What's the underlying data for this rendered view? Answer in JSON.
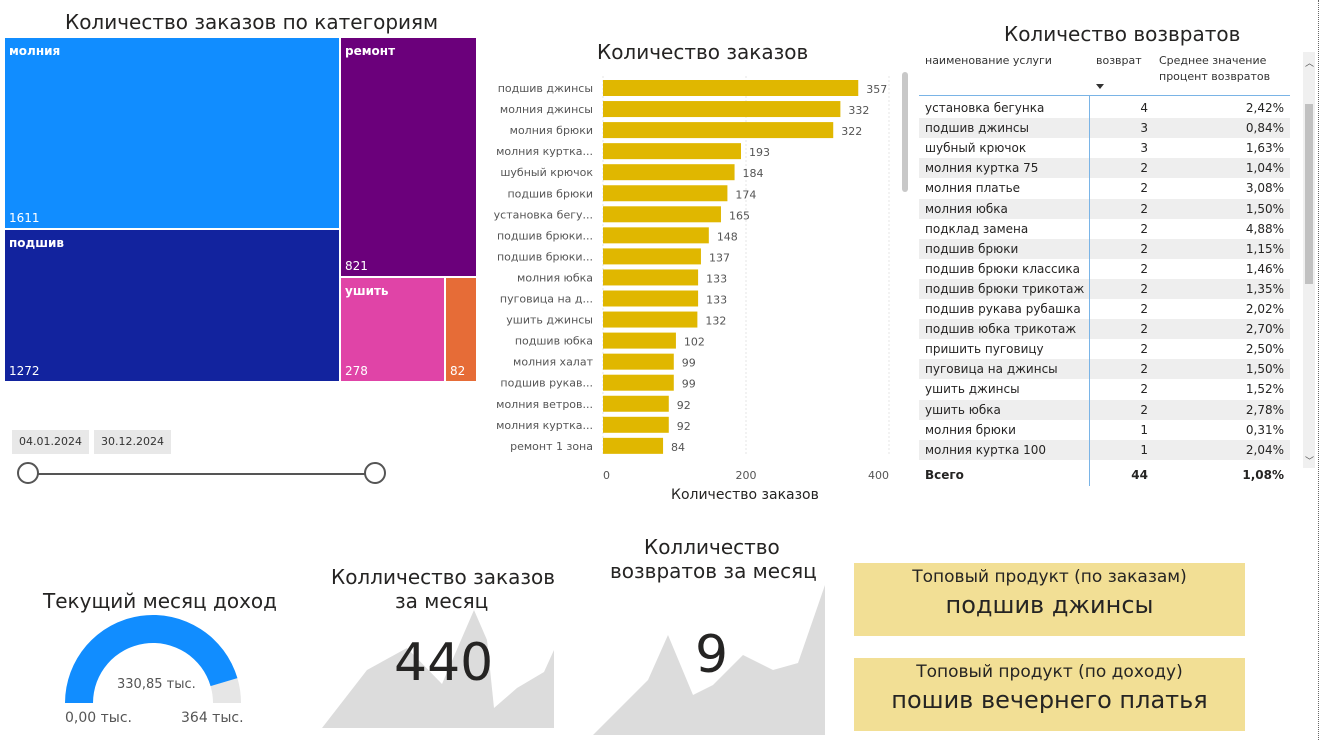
{
  "treemap": {
    "title": "Количество заказов по категориям",
    "tiles": [
      {
        "label": "молния",
        "value": "1611",
        "color": "#118dff"
      },
      {
        "label": "подшив",
        "value": "1272",
        "color": "#12239e"
      },
      {
        "label": "ремонт",
        "value": "821",
        "color": "#6b007b"
      },
      {
        "label": "ушить",
        "value": "278",
        "color": "#e044a7"
      },
      {
        "label": "",
        "value": "82",
        "color": "#e66c37"
      }
    ]
  },
  "date_slider": {
    "start": "04.01.2024",
    "end": "30.12.2024"
  },
  "orders_chart": {
    "title": "Количество заказов",
    "chart_data": {
      "type": "bar",
      "orientation": "horizontal",
      "categories": [
        "подшив джинсы",
        "молния джинсы",
        "молния брюки",
        "молния куртка...",
        "шубный крючок",
        "подшив брюки",
        "установка бегу...",
        "подшив брюки...",
        "подшив брюки...",
        "молния юбка",
        "пуговица на д...",
        "ушить джинсы",
        "подшив юбка",
        "молния халат",
        "подшив рукав...",
        "молния ветров...",
        "молния куртка...",
        "ремонт 1 зона"
      ],
      "values": [
        357,
        332,
        322,
        193,
        184,
        174,
        165,
        148,
        137,
        133,
        133,
        132,
        102,
        99,
        99,
        92,
        92,
        84
      ],
      "xlabel": "Количество заказов",
      "xticks": [
        "0",
        "200",
        "400"
      ],
      "xlim": [
        0,
        400
      ],
      "color": "#e0b700"
    }
  },
  "returns_table": {
    "title": "Количество возвратов",
    "headers": {
      "service": "наименование услуги",
      "returns": "возврат",
      "avg_line1": "Среднее значение",
      "avg_line2": "процент возвратов"
    },
    "rows": [
      {
        "service": "установка бегунка",
        "returns": "4",
        "pct": "2,42%"
      },
      {
        "service": "подшив джинсы",
        "returns": "3",
        "pct": "0,84%"
      },
      {
        "service": "шубный крючок",
        "returns": "3",
        "pct": "1,63%"
      },
      {
        "service": "молния куртка 75",
        "returns": "2",
        "pct": "1,04%"
      },
      {
        "service": "молния платье",
        "returns": "2",
        "pct": "3,08%"
      },
      {
        "service": "молния юбка",
        "returns": "2",
        "pct": "1,50%"
      },
      {
        "service": "подклад замена",
        "returns": "2",
        "pct": "4,88%"
      },
      {
        "service": "подшив брюки",
        "returns": "2",
        "pct": "1,15%"
      },
      {
        "service": "подшив брюки классика",
        "returns": "2",
        "pct": "1,46%"
      },
      {
        "service": "подшив брюки трикотаж",
        "returns": "2",
        "pct": "1,35%"
      },
      {
        "service": "подшив рукава рубашка",
        "returns": "2",
        "pct": "2,02%"
      },
      {
        "service": "подшив юбка трикотаж",
        "returns": "2",
        "pct": "2,70%"
      },
      {
        "service": "пришить пуговицу",
        "returns": "2",
        "pct": "2,50%"
      },
      {
        "service": "пуговица на джинсы",
        "returns": "2",
        "pct": "1,50%"
      },
      {
        "service": "ушить джинсы",
        "returns": "2",
        "pct": "1,52%"
      },
      {
        "service": "ушить юбка",
        "returns": "2",
        "pct": "2,78%"
      },
      {
        "service": "молния брюки",
        "returns": "1",
        "pct": "0,31%"
      },
      {
        "service": "молния куртка 100",
        "returns": "1",
        "pct": "2,04%"
      }
    ],
    "total": {
      "label": "Всего",
      "returns": "44",
      "pct": "1,08%"
    }
  },
  "income_gauge": {
    "title": "Текущий месяц доход",
    "value": "330,85 тыс.",
    "min": "0,00 тыс.",
    "max": "364 тыс.",
    "fraction": 0.909,
    "color": "#118dff"
  },
  "monthly_orders": {
    "title_line1": "Колличество заказов",
    "title_line2": "за месяц",
    "value": "440"
  },
  "monthly_returns": {
    "title_line1": "Колличество",
    "title_line2": "возвратов за месяц",
    "value": "9"
  },
  "top_by_orders": {
    "title": "Топовый продукт (по заказам)",
    "value": "подшив джинсы"
  },
  "top_by_income": {
    "title": "Топовый продукт (по доходу)",
    "value": "пошив вечернего платья"
  }
}
